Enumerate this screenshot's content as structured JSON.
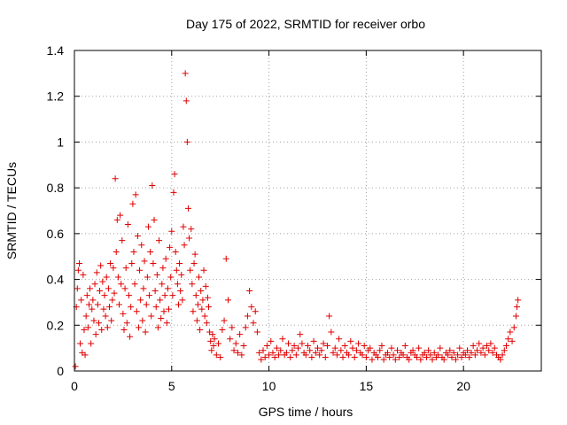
{
  "chart_data": {
    "type": "scatter",
    "title": "Day 175 of 2022, SRMTID for receiver orbo",
    "xlabel": "GPS time / hours",
    "ylabel": "SRMTID / TECUs",
    "xlim": [
      0,
      24
    ],
    "ylim": [
      0,
      1.4
    ],
    "xticks": [
      0,
      5,
      10,
      15,
      20
    ],
    "xtick_labels": [
      "0",
      "5",
      "10",
      "15",
      "20"
    ],
    "yticks": [
      0,
      0.2,
      0.4,
      0.6,
      0.8,
      1.0,
      1.2,
      1.4
    ],
    "ytick_labels": [
      "0",
      "0.2",
      "0.4",
      "0.6",
      "0.8",
      "1",
      "1.2",
      "1.4"
    ],
    "grid": true,
    "marker": "+",
    "color": "#e00000",
    "series": [
      {
        "name": "SRMTID",
        "x": [
          0.05,
          0.1,
          0.15,
          0.2,
          0.25,
          0.3,
          0.35,
          0.4,
          0.45,
          0.5,
          0.55,
          0.6,
          0.65,
          0.7,
          0.75,
          0.8,
          0.85,
          0.9,
          0.95,
          1.0,
          1.05,
          1.1,
          1.15,
          1.2,
          1.25,
          1.3,
          1.35,
          1.4,
          1.45,
          1.5,
          1.55,
          1.6,
          1.65,
          1.7,
          1.75,
          1.8,
          1.85,
          1.9,
          1.95,
          2.0,
          2.05,
          2.1,
          2.15,
          2.2,
          2.25,
          2.3,
          2.35,
          2.4,
          2.45,
          2.5,
          2.55,
          2.6,
          2.65,
          2.7,
          2.75,
          2.8,
          2.85,
          2.9,
          2.95,
          3.0,
          3.05,
          3.1,
          3.15,
          3.2,
          3.25,
          3.3,
          3.35,
          3.4,
          3.45,
          3.5,
          3.55,
          3.6,
          3.65,
          3.7,
          3.75,
          3.8,
          3.85,
          3.9,
          3.95,
          4.0,
          4.05,
          4.1,
          4.15,
          4.2,
          4.25,
          4.3,
          4.35,
          4.4,
          4.45,
          4.5,
          4.55,
          4.6,
          4.65,
          4.7,
          4.75,
          4.8,
          4.85,
          4.9,
          4.95,
          5.0,
          5.05,
          5.1,
          5.15,
          5.2,
          5.25,
          5.3,
          5.35,
          5.4,
          5.45,
          5.5,
          5.55,
          5.6,
          5.65,
          5.7,
          5.75,
          5.8,
          5.85,
          5.9,
          5.95,
          6.0,
          6.05,
          6.1,
          6.15,
          6.2,
          6.25,
          6.3,
          6.35,
          6.4,
          6.45,
          6.5,
          6.55,
          6.6,
          6.65,
          6.7,
          6.75,
          6.8,
          6.85,
          6.9,
          6.95,
          7.0,
          7.05,
          7.1,
          7.15,
          7.2,
          7.3,
          7.4,
          7.5,
          7.6,
          7.7,
          7.8,
          7.9,
          8.0,
          8.1,
          8.2,
          8.3,
          8.4,
          8.5,
          8.6,
          8.7,
          8.8,
          8.9,
          9.0,
          9.1,
          9.2,
          9.3,
          9.4,
          9.5,
          9.6,
          9.7,
          9.8,
          9.9,
          10.0,
          10.1,
          10.2,
          10.3,
          10.4,
          10.5,
          10.6,
          10.7,
          10.8,
          10.9,
          11.0,
          11.1,
          11.2,
          11.3,
          11.4,
          11.5,
          11.6,
          11.7,
          11.8,
          11.9,
          12.0,
          12.1,
          12.2,
          12.3,
          12.4,
          12.5,
          12.6,
          12.7,
          12.8,
          12.9,
          13.0,
          13.1,
          13.2,
          13.3,
          13.4,
          13.5,
          13.6,
          13.7,
          13.8,
          13.9,
          14.0,
          14.1,
          14.2,
          14.3,
          14.4,
          14.5,
          14.6,
          14.7,
          14.8,
          14.9,
          15.0,
          15.1,
          15.2,
          15.3,
          15.4,
          15.5,
          15.6,
          15.7,
          15.8,
          15.9,
          16.0,
          16.1,
          16.2,
          16.3,
          16.4,
          16.5,
          16.6,
          16.7,
          16.8,
          16.9,
          17.0,
          17.1,
          17.2,
          17.3,
          17.4,
          17.5,
          17.6,
          17.7,
          17.8,
          17.9,
          18.0,
          18.1,
          18.2,
          18.3,
          18.4,
          18.5,
          18.6,
          18.7,
          18.8,
          18.9,
          19.0,
          19.1,
          19.2,
          19.3,
          19.4,
          19.5,
          19.6,
          19.7,
          19.8,
          19.9,
          20.0,
          20.1,
          20.2,
          20.3,
          20.4,
          20.5,
          20.6,
          20.7,
          20.8,
          20.9,
          21.0,
          21.1,
          21.2,
          21.3,
          21.4,
          21.5,
          21.6,
          21.7,
          21.8,
          21.9,
          22.0,
          22.1,
          22.2,
          22.3,
          22.4,
          22.5,
          22.6,
          22.7,
          22.75,
          22.8
        ],
        "y": [
          0.02,
          0.28,
          0.36,
          0.44,
          0.47,
          0.12,
          0.31,
          0.08,
          0.42,
          0.18,
          0.07,
          0.24,
          0.33,
          0.19,
          0.29,
          0.36,
          0.12,
          0.27,
          0.31,
          0.22,
          0.38,
          0.16,
          0.43,
          0.29,
          0.21,
          0.35,
          0.46,
          0.18,
          0.39,
          0.27,
          0.33,
          0.24,
          0.41,
          0.19,
          0.36,
          0.28,
          0.47,
          0.22,
          0.31,
          0.45,
          0.34,
          0.84,
          0.52,
          0.66,
          0.41,
          0.29,
          0.68,
          0.38,
          0.57,
          0.25,
          0.18,
          0.36,
          0.45,
          0.21,
          0.64,
          0.33,
          0.15,
          0.28,
          0.47,
          0.73,
          0.52,
          0.38,
          0.77,
          0.26,
          0.59,
          0.19,
          0.44,
          0.31,
          0.55,
          0.22,
          0.36,
          0.48,
          0.17,
          0.29,
          0.41,
          0.63,
          0.33,
          0.52,
          0.24,
          0.81,
          0.47,
          0.66,
          0.35,
          0.28,
          0.42,
          0.19,
          0.57,
          0.31,
          0.23,
          0.38,
          0.45,
          0.26,
          0.33,
          0.49,
          0.21,
          0.36,
          0.27,
          0.54,
          0.41,
          0.61,
          0.33,
          0.78,
          0.86,
          0.52,
          0.44,
          0.38,
          0.29,
          0.47,
          0.35,
          0.42,
          0.31,
          0.63,
          0.55,
          1.3,
          1.18,
          1.0,
          0.71,
          0.58,
          0.44,
          0.62,
          0.38,
          0.26,
          0.47,
          0.51,
          0.33,
          0.22,
          0.29,
          0.41,
          0.18,
          0.35,
          0.27,
          0.31,
          0.44,
          0.24,
          0.37,
          0.21,
          0.32,
          0.28,
          0.17,
          0.13,
          0.09,
          0.16,
          0.11,
          0.14,
          0.07,
          0.12,
          0.06,
          0.18,
          0.22,
          0.49,
          0.31,
          0.14,
          0.19,
          0.09,
          0.12,
          0.08,
          0.16,
          0.07,
          0.11,
          0.19,
          0.24,
          0.35,
          0.28,
          0.21,
          0.26,
          0.17,
          0.08,
          0.05,
          0.09,
          0.06,
          0.11,
          0.07,
          0.13,
          0.08,
          0.06,
          0.1,
          0.07,
          0.09,
          0.14,
          0.07,
          0.08,
          0.12,
          0.06,
          0.09,
          0.11,
          0.07,
          0.1,
          0.16,
          0.12,
          0.08,
          0.07,
          0.11,
          0.09,
          0.06,
          0.13,
          0.08,
          0.1,
          0.07,
          0.09,
          0.12,
          0.06,
          0.11,
          0.24,
          0.17,
          0.08,
          0.1,
          0.07,
          0.14,
          0.09,
          0.06,
          0.11,
          0.08,
          0.07,
          0.13,
          0.1,
          0.06,
          0.09,
          0.12,
          0.08,
          0.07,
          0.11,
          0.06,
          0.09,
          0.1,
          0.05,
          0.08,
          0.07,
          0.06,
          0.09,
          0.11,
          0.05,
          0.07,
          0.08,
          0.06,
          0.1,
          0.07,
          0.05,
          0.09,
          0.06,
          0.08,
          0.07,
          0.11,
          0.06,
          0.05,
          0.08,
          0.09,
          0.07,
          0.06,
          0.1,
          0.05,
          0.07,
          0.08,
          0.06,
          0.09,
          0.07,
          0.05,
          0.08,
          0.06,
          0.07,
          0.1,
          0.06,
          0.05,
          0.08,
          0.07,
          0.09,
          0.06,
          0.08,
          0.05,
          0.07,
          0.1,
          0.06,
          0.08,
          0.07,
          0.09,
          0.06,
          0.08,
          0.11,
          0.07,
          0.09,
          0.12,
          0.08,
          0.1,
          0.07,
          0.11,
          0.09,
          0.12,
          0.08,
          0.1,
          0.07,
          0.06,
          0.05,
          0.07,
          0.09,
          0.11,
          0.14,
          0.17,
          0.13,
          0.19,
          0.24,
          0.28,
          0.31
        ]
      }
    ]
  }
}
